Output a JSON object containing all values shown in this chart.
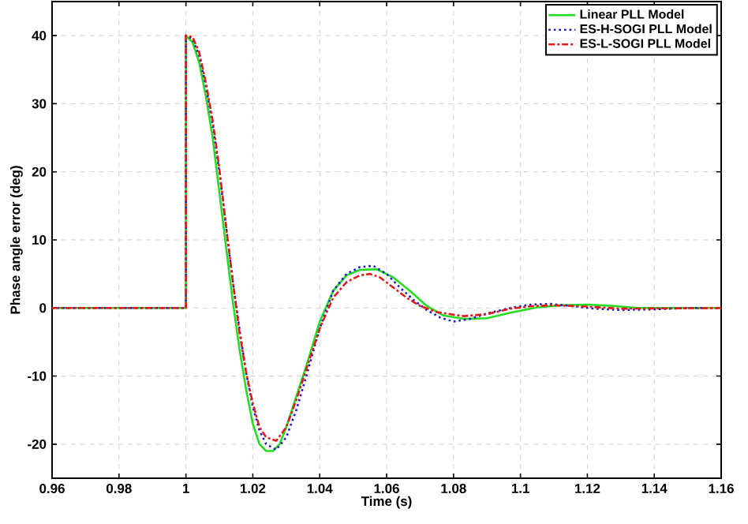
{
  "chart_data": {
    "type": "line",
    "xlabel": "Time (s)",
    "ylabel": "Phase angle error (deg)",
    "xlim": [
      0.96,
      1.16
    ],
    "ylim": [
      -25,
      45
    ],
    "xticks": [
      0.96,
      0.98,
      1,
      1.02,
      1.04,
      1.06,
      1.08,
      1.1,
      1.12,
      1.14,
      1.16
    ],
    "yticks": [
      -20,
      -10,
      0,
      10,
      20,
      30,
      40
    ],
    "grid": true,
    "legend": "top right",
    "marker": "none",
    "series": [
      {
        "name": "Linear PLL Model",
        "color": "#22dd22",
        "line_style": "solid",
        "x": [
          0.96,
          1.0,
          1.0,
          1.002,
          1.004,
          1.006,
          1.008,
          1.01,
          1.012,
          1.014,
          1.016,
          1.018,
          1.02,
          1.022,
          1.024,
          1.026,
          1.028,
          1.03,
          1.033,
          1.036,
          1.04,
          1.044,
          1.048,
          1.052,
          1.057,
          1.062,
          1.067,
          1.072,
          1.077,
          1.083,
          1.09,
          1.097,
          1.105,
          1.112,
          1.12,
          1.128,
          1.135,
          1.16
        ],
        "values": [
          0,
          0,
          40,
          39,
          36,
          31,
          25,
          17,
          9,
          1,
          -6,
          -12,
          -17,
          -20,
          -21,
          -21,
          -20,
          -17.5,
          -13,
          -8.5,
          -2,
          2.5,
          4.8,
          5.6,
          5.7,
          4.5,
          2.5,
          0.3,
          -1.1,
          -1.6,
          -1.5,
          -0.7,
          0.1,
          0.4,
          0.5,
          0.3,
          0,
          0
        ]
      },
      {
        "name": "ES-H-SOGI PLL Model",
        "color": "#1a1acc",
        "line_style": "dotted",
        "x": [
          0.96,
          1.0,
          1.0,
          1.002,
          1.004,
          1.006,
          1.008,
          1.01,
          1.012,
          1.014,
          1.016,
          1.018,
          1.02,
          1.022,
          1.024,
          1.027,
          1.03,
          1.033,
          1.036,
          1.04,
          1.044,
          1.048,
          1.052,
          1.056,
          1.06,
          1.064,
          1.068,
          1.072,
          1.076,
          1.08,
          1.085,
          1.09,
          1.097,
          1.103,
          1.109,
          1.115,
          1.122,
          1.13,
          1.14,
          1.15,
          1.16
        ],
        "values": [
          0,
          0,
          40,
          39.5,
          37,
          32.5,
          27,
          20,
          12,
          4,
          -3,
          -9.5,
          -14.5,
          -18,
          -20,
          -20.8,
          -19,
          -15,
          -10,
          -3,
          2.5,
          5,
          6,
          6.2,
          5,
          3,
          1.2,
          -0.3,
          -1.4,
          -2,
          -1.6,
          -0.8,
          0,
          0.5,
          0.6,
          0.3,
          -0.1,
          -0.3,
          -0.2,
          0,
          0
        ]
      },
      {
        "name": "ES-L-SOGI PLL Model",
        "color": "#e41a1a",
        "line_style": "dashdot",
        "x": [
          0.96,
          1.0,
          1.0,
          1.002,
          1.004,
          1.006,
          1.008,
          1.01,
          1.012,
          1.014,
          1.016,
          1.018,
          1.02,
          1.022,
          1.024,
          1.027,
          1.03,
          1.033,
          1.036,
          1.04,
          1.044,
          1.048,
          1.052,
          1.055,
          1.058,
          1.062,
          1.066,
          1.07,
          1.075,
          1.083,
          1.09,
          1.097,
          1.104,
          1.11,
          1.12,
          1.13,
          1.16
        ],
        "values": [
          0,
          0,
          40,
          39.8,
          37.5,
          33,
          27.5,
          20.5,
          12,
          4,
          -3.5,
          -9.5,
          -14,
          -17.5,
          -19,
          -19.5,
          -17.5,
          -13.5,
          -9,
          -3,
          1.5,
          3.8,
          4.8,
          5,
          4.5,
          3,
          1.5,
          0.3,
          -0.6,
          -1.2,
          -0.9,
          -0.1,
          0.3,
          0.4,
          0.2,
          -0.1,
          0
        ]
      }
    ]
  }
}
